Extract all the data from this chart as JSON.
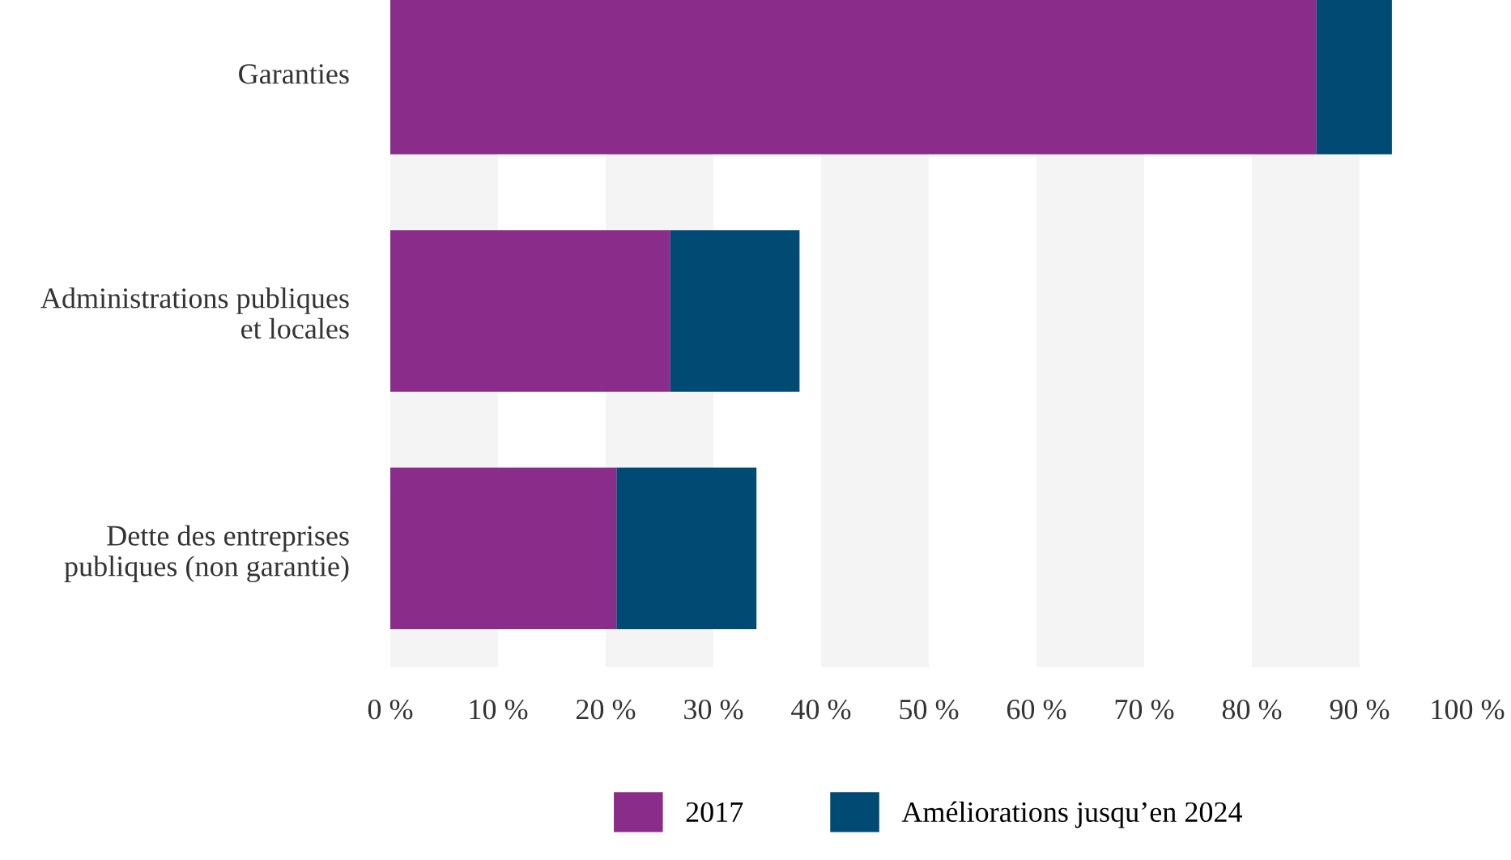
{
  "chart_data": {
    "type": "bar",
    "orientation": "horizontal",
    "stacked": true,
    "categories": [
      "Garanties",
      "Administrations publiques\net locales",
      "Dette des entreprises\npubliques (non garantie)"
    ],
    "series": [
      {
        "name": "2017",
        "color": "#8a2d8a",
        "values": [
          86,
          26,
          21
        ]
      },
      {
        "name": "Améliorations jusqu’en 2024",
        "color": "#004a73",
        "values": [
          7,
          12,
          13
        ]
      }
    ],
    "xlim": [
      0,
      100
    ],
    "xticks": [
      {
        "value": 0,
        "label": "0 %"
      },
      {
        "value": 10,
        "label": "10 %"
      },
      {
        "value": 20,
        "label": "20 %"
      },
      {
        "value": 30,
        "label": "30 %"
      },
      {
        "value": 40,
        "label": "40 %"
      },
      {
        "value": 50,
        "label": "50 %"
      },
      {
        "value": 60,
        "label": "60 %"
      },
      {
        "value": 70,
        "label": "70 %"
      },
      {
        "value": 80,
        "label": "80 %"
      },
      {
        "value": 90,
        "label": "90 %"
      },
      {
        "value": 100,
        "label": "100 %"
      }
    ],
    "bands": [
      {
        "axis": "x",
        "from": 0,
        "to": 10,
        "color": "#f4f4f4"
      },
      {
        "axis": "x",
        "from": 20,
        "to": 30,
        "color": "#f4f4f4"
      },
      {
        "axis": "x",
        "from": 40,
        "to": 50,
        "color": "#f4f4f4"
      },
      {
        "axis": "x",
        "from": 60,
        "to": 70,
        "color": "#f4f4f4"
      },
      {
        "axis": "x",
        "from": 80,
        "to": 90,
        "color": "#f4f4f4"
      }
    ],
    "legend": "bottom",
    "grid": false
  }
}
